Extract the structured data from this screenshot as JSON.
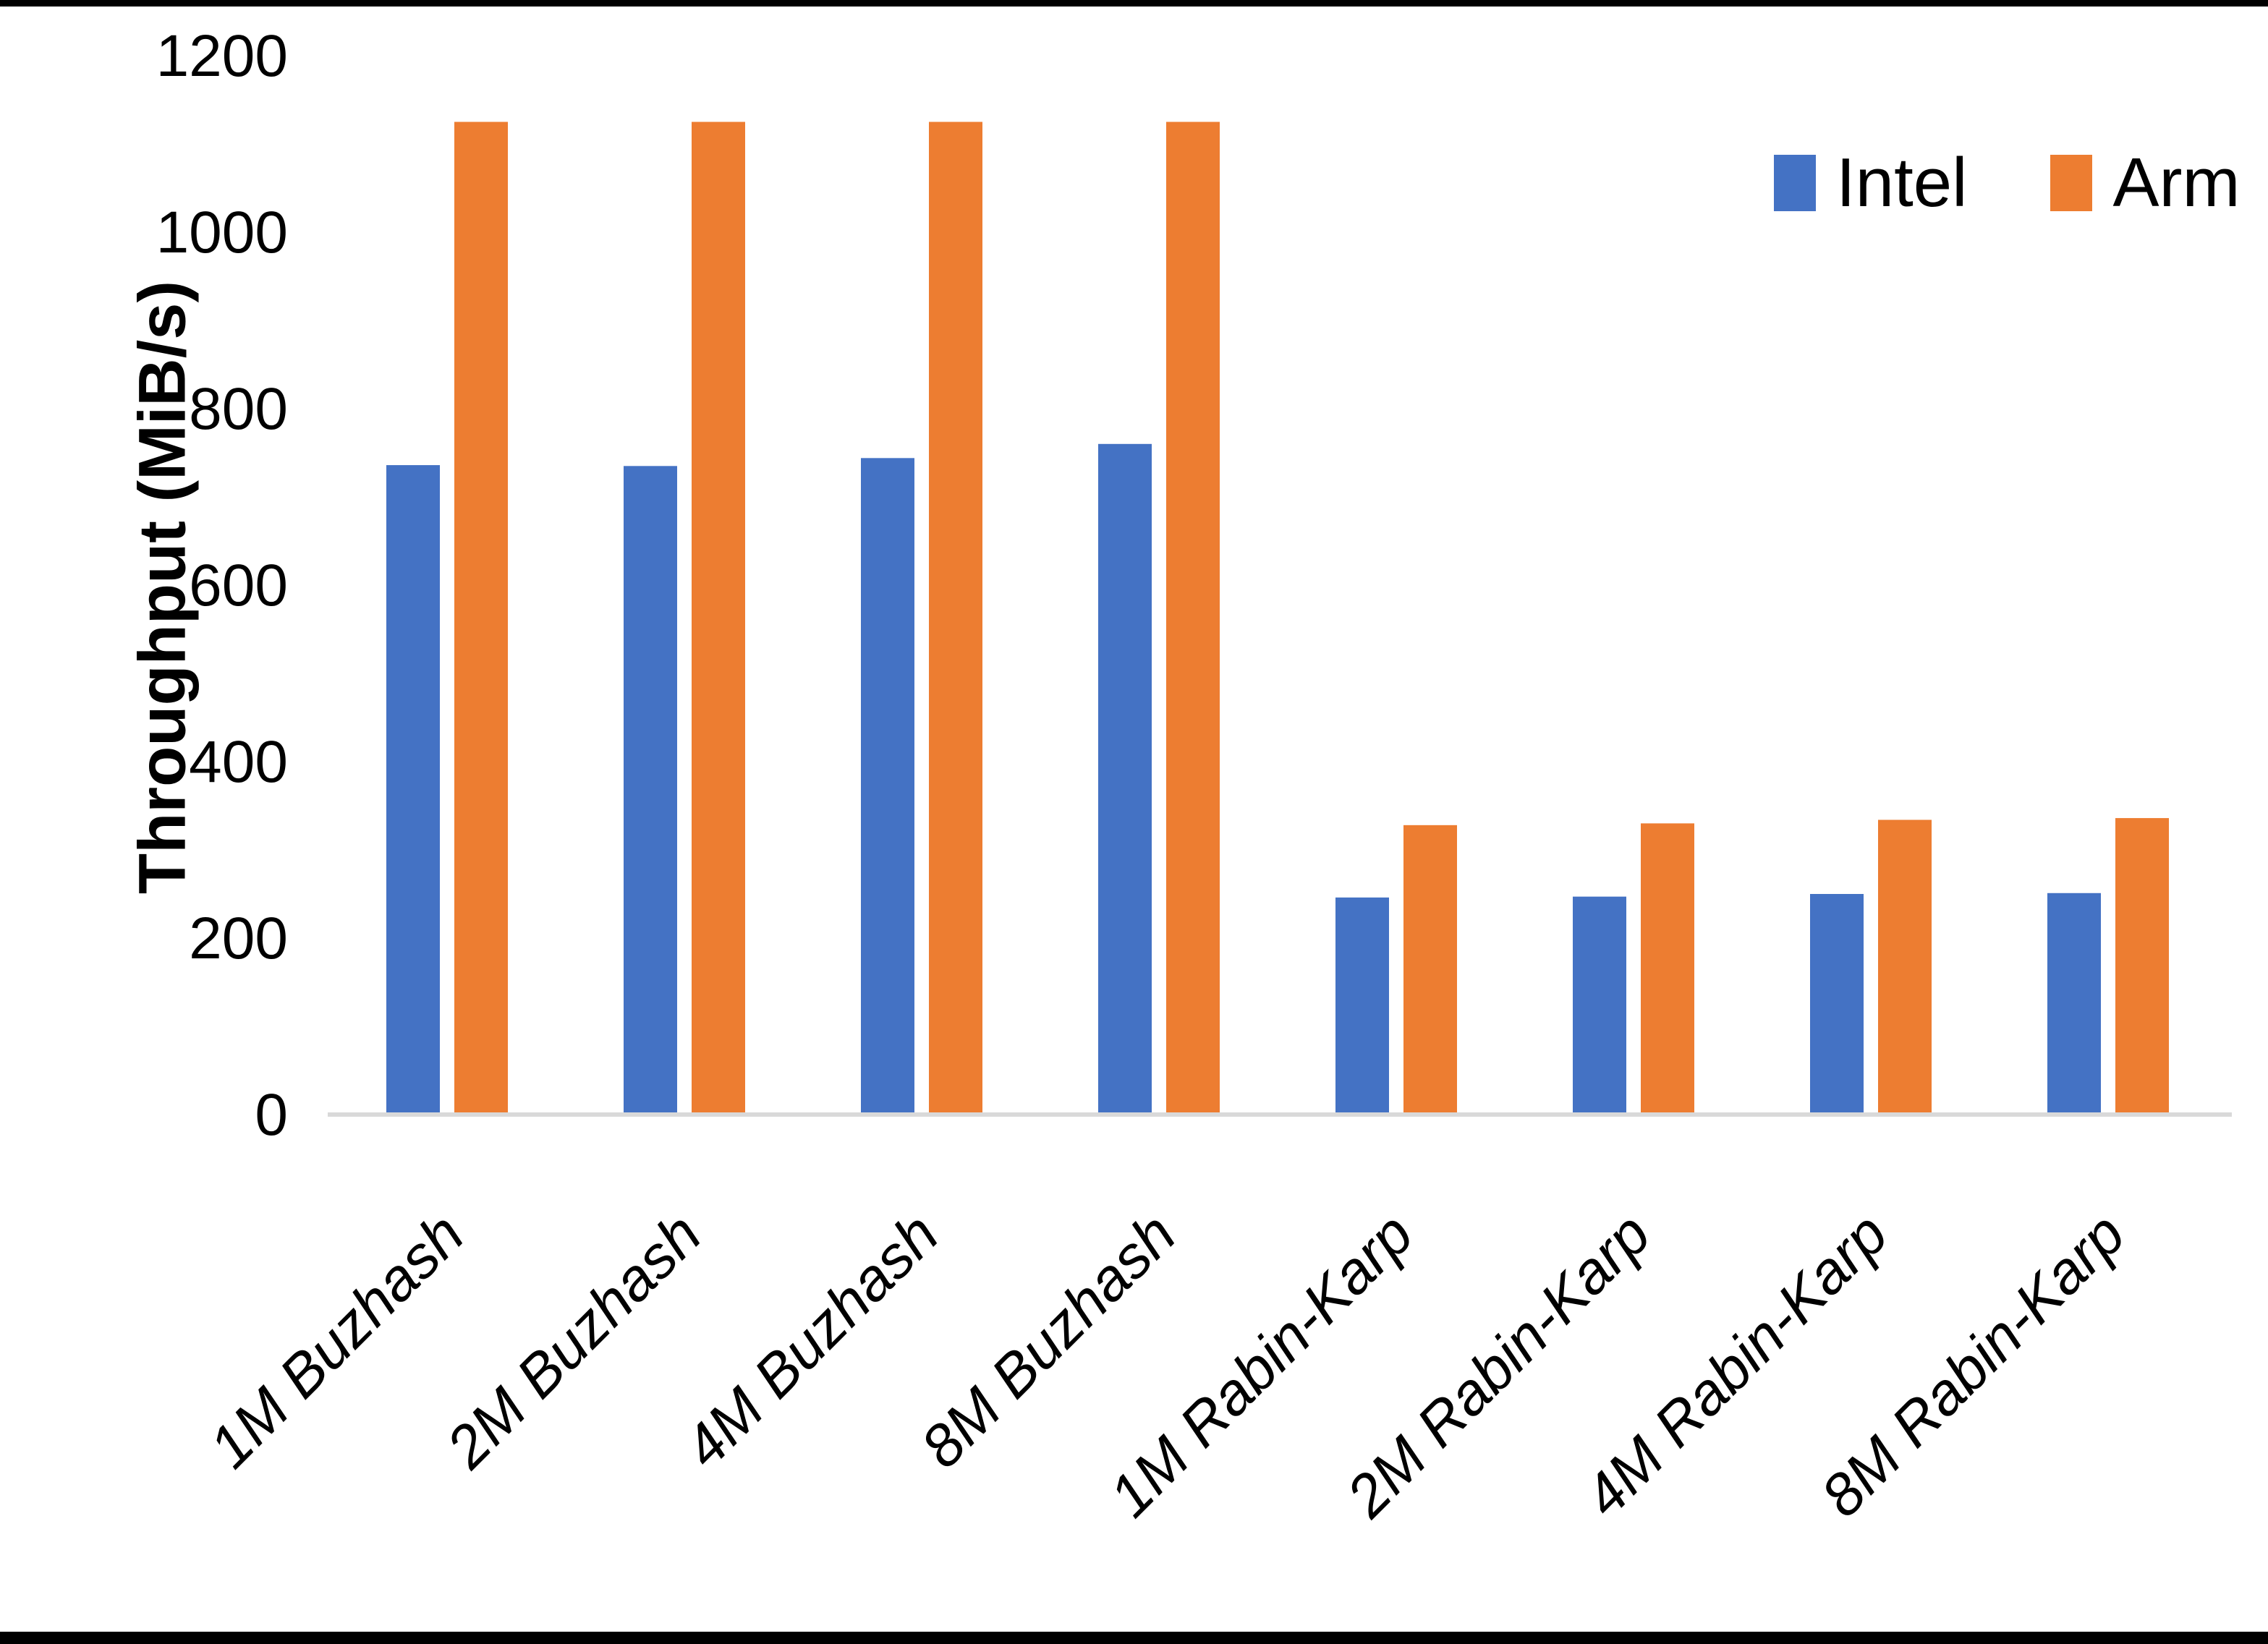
{
  "page": {
    "background": "#ffffff",
    "frame_border_color": "#000000"
  },
  "legend": {
    "intel_label": "Intel",
    "arm_label": "Arm"
  },
  "chart_data": {
    "type": "bar",
    "title": "",
    "xlabel": "",
    "ylabel": "Throughput (MiB/s)",
    "ylim": [
      0,
      1200
    ],
    "yticks": [
      0,
      200,
      400,
      600,
      800,
      1000,
      1200
    ],
    "grid": false,
    "legend_position": "top-right",
    "axis_line_color": "#d9d9d9",
    "categories": [
      "1M Buzhash",
      "2M Buzhash",
      "4M Buzhash",
      "8M Buzhash",
      "1M Rabin-Karp",
      "2M Rabin-Karp",
      "4M Rabin-Karp",
      "8M Rabin-Karp"
    ],
    "series": [
      {
        "name": "Intel",
        "color": "#4472c4",
        "values": [
          736,
          735,
          744,
          760,
          246,
          247,
          250,
          251
        ]
      },
      {
        "name": "Arm",
        "color": "#ed7d31",
        "values": [
          1125,
          1125,
          1125,
          1125,
          328,
          330,
          334,
          336
        ]
      }
    ]
  }
}
